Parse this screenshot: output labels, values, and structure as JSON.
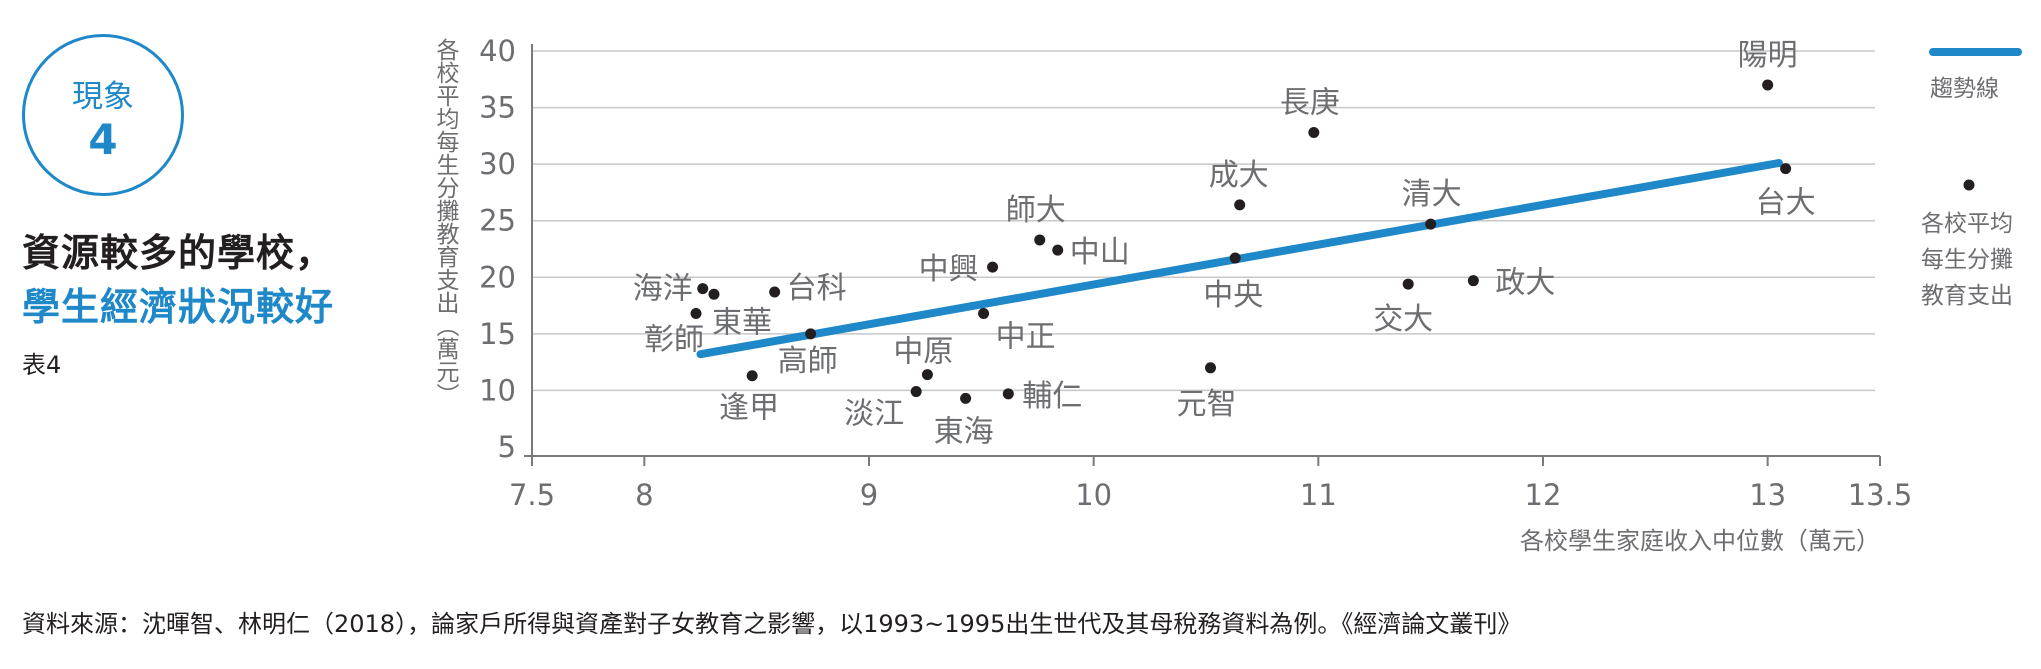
{
  "badge": {
    "label": "現象",
    "number": "4"
  },
  "headline": {
    "line1": "資源較多的學校，",
    "line2": "學生經濟狀況較好"
  },
  "table_label": "表4",
  "source_note": "資料來源：沈暉智、林明仁（2018），論家戶所得與資產對子女教育之影響，以1993~1995出生世代及其母稅務資料為例。《經濟論文叢刊》",
  "colors": {
    "accent": "#1e88c9",
    "point": "#231f20",
    "axis": "#7a7a7a",
    "grid": "#c8c8c8",
    "label": "#6d6e71"
  },
  "chart_data": {
    "type": "scatter",
    "xlabel": "各校學生家庭收入中位數（萬元）",
    "ylabel": "各校平均每生分攤教育支出（萬元）",
    "xlim": [
      7.5,
      13.5
    ],
    "ylim": [
      5,
      40
    ],
    "x_ticks": [
      "7.5",
      "8",
      "9",
      "10",
      "11",
      "12",
      "13",
      "13.5"
    ],
    "y_ticks": [
      "5",
      "10",
      "15",
      "20",
      "25",
      "30",
      "35",
      "40"
    ],
    "grid": "horizontal",
    "legend": {
      "position": "right",
      "trend_label": "趨勢線",
      "points_label": [
        "各校平均",
        "每生分攤",
        "教育支出"
      ]
    },
    "trend_line": {
      "x": [
        8.25,
        13.05
      ],
      "y": [
        13.2,
        30.1
      ]
    },
    "points": [
      {
        "name": "陽明",
        "x": 13.0,
        "y": 37.0
      },
      {
        "name": "長庚",
        "x": 10.98,
        "y": 32.8
      },
      {
        "name": "台大",
        "x": 13.08,
        "y": 29.6
      },
      {
        "name": "成大",
        "x": 10.65,
        "y": 26.4
      },
      {
        "name": "清大",
        "x": 11.5,
        "y": 24.7
      },
      {
        "name": "師大",
        "x": 9.76,
        "y": 23.3
      },
      {
        "name": "中山",
        "x": 9.84,
        "y": 22.4
      },
      {
        "name": "中央",
        "x": 10.63,
        "y": 21.7
      },
      {
        "name": "中興",
        "x": 9.55,
        "y": 20.9
      },
      {
        "name": "政大",
        "x": 11.69,
        "y": 19.7
      },
      {
        "name": "交大",
        "x": 11.4,
        "y": 19.4
      },
      {
        "name": "海洋",
        "x": 8.26,
        "y": 19.0
      },
      {
        "name": "東華",
        "x": 8.31,
        "y": 18.5
      },
      {
        "name": "台科",
        "x": 8.58,
        "y": 18.7
      },
      {
        "name": "彰師",
        "x": 8.23,
        "y": 16.8
      },
      {
        "name": "中正",
        "x": 9.51,
        "y": 16.8
      },
      {
        "name": "高師",
        "x": 8.74,
        "y": 15.0
      },
      {
        "name": "元智",
        "x": 10.52,
        "y": 12.0
      },
      {
        "name": "中原",
        "x": 9.26,
        "y": 11.4
      },
      {
        "name": "逢甲",
        "x": 8.48,
        "y": 11.3
      },
      {
        "name": "淡江",
        "x": 9.21,
        "y": 9.9
      },
      {
        "name": "輔仁",
        "x": 9.62,
        "y": 9.7
      },
      {
        "name": "東海",
        "x": 9.43,
        "y": 9.3
      }
    ]
  }
}
